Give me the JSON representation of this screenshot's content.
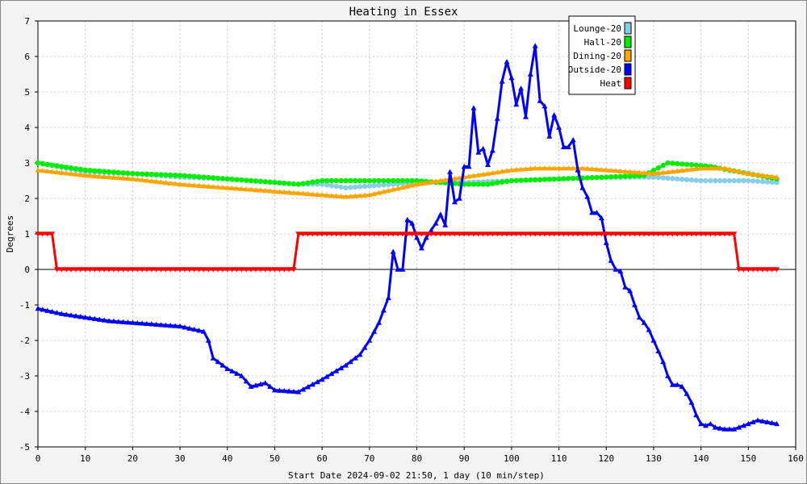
{
  "chart_data": {
    "type": "line",
    "title": "Heating in Essex",
    "xlabel": "Start Date 2024-09-02 21:50, 1 day (10 min/step)",
    "ylabel": "Degrees",
    "xlim": [
      0,
      160
    ],
    "ylim": [
      -5,
      7
    ],
    "xticks": [
      0,
      10,
      20,
      30,
      40,
      50,
      60,
      70,
      80,
      90,
      100,
      110,
      120,
      130,
      140,
      150,
      160
    ],
    "yticks": [
      -5,
      -4,
      -3,
      -2,
      -1,
      0,
      1,
      2,
      3,
      4,
      5,
      6,
      7
    ],
    "grid": true,
    "legend_position": "top-right",
    "series": [
      {
        "name": "Lounge-20",
        "color": "#87ceeb",
        "marker": "dot",
        "points": [
          [
            0,
            3.0
          ],
          [
            10,
            2.75
          ],
          [
            20,
            2.7
          ],
          [
            30,
            2.6
          ],
          [
            40,
            2.55
          ],
          [
            50,
            2.45
          ],
          [
            55,
            2.4
          ],
          [
            60,
            2.4
          ],
          [
            65,
            2.3
          ],
          [
            70,
            2.35
          ],
          [
            80,
            2.45
          ],
          [
            90,
            2.45
          ],
          [
            100,
            2.5
          ],
          [
            110,
            2.55
          ],
          [
            120,
            2.6
          ],
          [
            130,
            2.6
          ],
          [
            135,
            2.55
          ],
          [
            140,
            2.5
          ],
          [
            150,
            2.5
          ],
          [
            156,
            2.45
          ]
        ]
      },
      {
        "name": "Hall-20",
        "color": "#00ee00",
        "marker": "dot",
        "points": [
          [
            0,
            3.0
          ],
          [
            10,
            2.8
          ],
          [
            20,
            2.7
          ],
          [
            30,
            2.65
          ],
          [
            40,
            2.55
          ],
          [
            50,
            2.45
          ],
          [
            55,
            2.4
          ],
          [
            60,
            2.5
          ],
          [
            70,
            2.5
          ],
          [
            80,
            2.5
          ],
          [
            85,
            2.45
          ],
          [
            90,
            2.4
          ],
          [
            95,
            2.4
          ],
          [
            100,
            2.5
          ],
          [
            110,
            2.55
          ],
          [
            120,
            2.6
          ],
          [
            128,
            2.65
          ],
          [
            133,
            3.0
          ],
          [
            138,
            2.95
          ],
          [
            142,
            2.9
          ],
          [
            146,
            2.8
          ],
          [
            150,
            2.7
          ],
          [
            156,
            2.55
          ]
        ]
      },
      {
        "name": "Dining-20",
        "color": "#ffa500",
        "marker": "triangle",
        "points": [
          [
            0,
            2.8
          ],
          [
            10,
            2.65
          ],
          [
            20,
            2.55
          ],
          [
            30,
            2.4
          ],
          [
            40,
            2.3
          ],
          [
            50,
            2.2
          ],
          [
            55,
            2.15
          ],
          [
            60,
            2.1
          ],
          [
            65,
            2.05
          ],
          [
            70,
            2.1
          ],
          [
            75,
            2.25
          ],
          [
            80,
            2.4
          ],
          [
            90,
            2.6
          ],
          [
            95,
            2.7
          ],
          [
            100,
            2.8
          ],
          [
            105,
            2.85
          ],
          [
            110,
            2.85
          ],
          [
            115,
            2.85
          ],
          [
            120,
            2.8
          ],
          [
            125,
            2.75
          ],
          [
            130,
            2.7
          ],
          [
            140,
            2.85
          ],
          [
            145,
            2.85
          ],
          [
            150,
            2.7
          ],
          [
            156,
            2.6
          ]
        ]
      },
      {
        "name": "Outside-20",
        "color": "#0000ff",
        "marker": "triangle",
        "points": [
          [
            0,
            -1.1
          ],
          [
            5,
            -1.25
          ],
          [
            10,
            -1.35
          ],
          [
            15,
            -1.45
          ],
          [
            20,
            -1.5
          ],
          [
            25,
            -1.55
          ],
          [
            30,
            -1.6
          ],
          [
            35,
            -1.75
          ],
          [
            36,
            -2.0
          ],
          [
            37,
            -2.5
          ],
          [
            40,
            -2.8
          ],
          [
            43,
            -3.0
          ],
          [
            45,
            -3.3
          ],
          [
            48,
            -3.2
          ],
          [
            50,
            -3.4
          ],
          [
            55,
            -3.45
          ],
          [
            60,
            -3.1
          ],
          [
            65,
            -2.7
          ],
          [
            68,
            -2.4
          ],
          [
            70,
            -2.0
          ],
          [
            72,
            -1.5
          ],
          [
            74,
            -0.8
          ],
          [
            75,
            0.5
          ],
          [
            76,
            0.0
          ],
          [
            77,
            0.0
          ],
          [
            78,
            1.4
          ],
          [
            79,
            1.3
          ],
          [
            80,
            0.9
          ],
          [
            81,
            0.6
          ],
          [
            82,
            0.9
          ],
          [
            84,
            1.3
          ],
          [
            85,
            1.55
          ],
          [
            86,
            1.25
          ],
          [
            87,
            2.75
          ],
          [
            88,
            1.9
          ],
          [
            89,
            2.0
          ],
          [
            90,
            2.9
          ],
          [
            91,
            2.9
          ],
          [
            92,
            4.55
          ],
          [
            93,
            3.3
          ],
          [
            94,
            3.4
          ],
          [
            95,
            2.95
          ],
          [
            96,
            3.35
          ],
          [
            97,
            4.25
          ],
          [
            98,
            5.3
          ],
          [
            99,
            5.85
          ],
          [
            100,
            5.4
          ],
          [
            101,
            4.65
          ],
          [
            102,
            5.1
          ],
          [
            103,
            4.3
          ],
          [
            104,
            5.5
          ],
          [
            105,
            6.3
          ],
          [
            106,
            4.75
          ],
          [
            107,
            4.6
          ],
          [
            108,
            3.75
          ],
          [
            109,
            4.35
          ],
          [
            110,
            4.0
          ],
          [
            111,
            3.45
          ],
          [
            112,
            3.45
          ],
          [
            113,
            3.65
          ],
          [
            114,
            2.8
          ],
          [
            115,
            2.3
          ],
          [
            116,
            2.05
          ],
          [
            117,
            1.6
          ],
          [
            118,
            1.6
          ],
          [
            119,
            1.45
          ],
          [
            120,
            0.75
          ],
          [
            121,
            0.25
          ],
          [
            122,
            0.0
          ],
          [
            123,
            -0.05
          ],
          [
            124,
            -0.5
          ],
          [
            125,
            -0.6
          ],
          [
            126,
            -1.0
          ],
          [
            127,
            -1.35
          ],
          [
            128,
            -1.5
          ],
          [
            129,
            -1.7
          ],
          [
            130,
            -2.0
          ],
          [
            131,
            -2.3
          ],
          [
            132,
            -2.6
          ],
          [
            133,
            -3.0
          ],
          [
            134,
            -3.25
          ],
          [
            135,
            -3.25
          ],
          [
            136,
            -3.3
          ],
          [
            137,
            -3.5
          ],
          [
            138,
            -3.75
          ],
          [
            139,
            -4.1
          ],
          [
            140,
            -4.35
          ],
          [
            141,
            -4.4
          ],
          [
            142,
            -4.35
          ],
          [
            143,
            -4.45
          ],
          [
            145,
            -4.5
          ],
          [
            147,
            -4.5
          ],
          [
            148,
            -4.45
          ],
          [
            150,
            -4.35
          ],
          [
            152,
            -4.25
          ],
          [
            154,
            -4.3
          ],
          [
            156,
            -4.35
          ]
        ]
      },
      {
        "name": "Heat",
        "color": "#ff0000",
        "marker": "dtriangle",
        "points": [
          [
            0,
            1
          ],
          [
            3,
            1
          ],
          [
            4,
            0
          ],
          [
            54,
            0
          ],
          [
            55,
            1
          ],
          [
            147,
            1
          ],
          [
            148,
            0
          ],
          [
            156,
            0
          ]
        ]
      }
    ]
  }
}
